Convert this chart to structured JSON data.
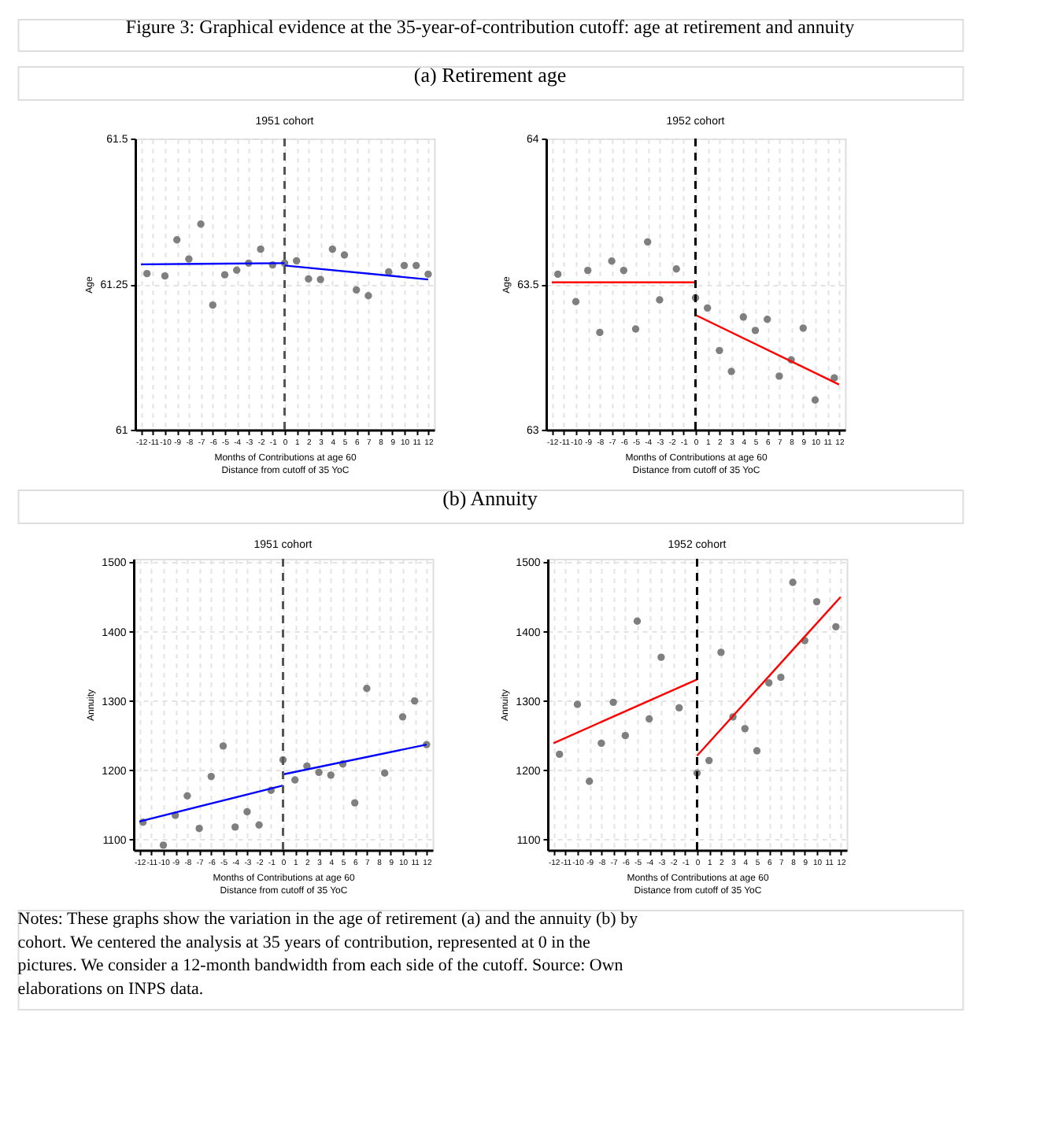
{
  "chart_data": [
    {
      "type": "scatter",
      "title": "1951 cohort",
      "xlabel": "Months of Contributions at age 60\nDistance from cutoff of 35 YoC",
      "ylabel": "Age",
      "annotations": [
        "Figure 3: Graphical evidence at the 35-year-of-contribution cutoff: age at retirement and annuity",
        "(a) Retirement age"
      ],
      "xlim": [
        -12.5,
        12.5
      ],
      "xticks": [
        -12,
        -11,
        -10,
        -9,
        -8,
        -7,
        -6,
        -5,
        -4,
        -3,
        -2,
        -1,
        0,
        1,
        2,
        3,
        4,
        5,
        6,
        7,
        8,
        9,
        10,
        11,
        12
      ],
      "ylim": [
        61,
        61.5
      ],
      "yticks": [
        61,
        61.25,
        61.5
      ],
      "grid": true,
      "ref_lines": [
        {
          "axis": "x",
          "value": 0,
          "color": "#555555",
          "line_style": "dashed"
        }
      ],
      "series": [
        {
          "color": "#7f7f7f",
          "marker": "circle",
          "x": [
            -11.5,
            -10,
            -9,
            -8,
            -7,
            -6,
            -5,
            -4,
            -3,
            -2,
            -1,
            0,
            1,
            2,
            3,
            4,
            5,
            6,
            7,
            8.7,
            10,
            11,
            12
          ],
          "values": [
            61.268,
            61.264,
            61.326,
            61.293,
            61.353,
            61.214,
            61.266,
            61.274,
            61.286,
            61.31,
            61.283,
            61.286,
            61.29,
            61.259,
            61.258,
            61.31,
            61.3,
            61.24,
            61.23,
            61.271,
            61.282,
            61.282,
            61.267
          ]
        },
        {
          "type": "line",
          "color": "#0000ff",
          "x": [
            -12,
            0
          ],
          "values": [
            61.284,
            61.286
          ]
        },
        {
          "type": "line",
          "color": "#0000ff",
          "x": [
            0,
            12
          ],
          "values": [
            61.282,
            61.258
          ]
        }
      ]
    },
    {
      "type": "scatter",
      "title": "1952 cohort",
      "xlabel": "Months of Contributions at age 60\nDistance from cutoff of 35 YoC",
      "ylabel": "Age",
      "xlim": [
        -12.5,
        12.5
      ],
      "xticks": [
        -12,
        -11,
        -10,
        -9,
        -8,
        -7,
        -6,
        -5,
        -4,
        -3,
        -2,
        -1,
        0,
        1,
        2,
        3,
        4,
        5,
        6,
        7,
        8,
        9,
        10,
        11,
        12
      ],
      "ylim": [
        63,
        64
      ],
      "yticks": [
        63,
        63.5,
        64
      ],
      "grid": true,
      "ref_lines": [
        {
          "axis": "x",
          "value": 0,
          "color": "#000000",
          "line_style": "dashed"
        }
      ],
      "series": [
        {
          "color": "#7f7f7f",
          "marker": "circle",
          "x": [
            -11.5,
            -10,
            -9,
            -8,
            -7,
            -6,
            -5,
            -4,
            -3,
            -1.6,
            0,
            1,
            2,
            3,
            4,
            5,
            6,
            7,
            8,
            9,
            10,
            11.6
          ],
          "values": [
            63.534,
            63.44,
            63.547,
            63.334,
            63.579,
            63.547,
            63.346,
            63.645,
            63.446,
            63.552,
            63.453,
            63.418,
            63.272,
            63.2,
            63.387,
            63.341,
            63.379,
            63.184,
            63.24,
            63.349,
            63.102,
            63.178
          ]
        },
        {
          "type": "line",
          "color": "#ff0000",
          "x": [
            -12,
            0
          ],
          "values": [
            63.506,
            63.506
          ]
        },
        {
          "type": "line",
          "color": "#ff0000",
          "x": [
            0,
            12
          ],
          "values": [
            63.394,
            63.155
          ]
        }
      ]
    },
    {
      "type": "scatter",
      "title": "1951 cohort",
      "xlabel": "Months of Contributions at age 60\nDistance from cutoff of 35 YoC",
      "ylabel": "Annuity",
      "annotations": [
        "(b) Annuity"
      ],
      "xlim": [
        -12.5,
        12.5
      ],
      "xticks": [
        -12,
        -11,
        -10,
        -9,
        -8,
        -7,
        -6,
        -5,
        -4,
        -3,
        -2,
        -1,
        0,
        1,
        2,
        3,
        4,
        5,
        6,
        7,
        8,
        9,
        10,
        11,
        12
      ],
      "ylim": [
        1085,
        1505
      ],
      "yticks": [
        1100,
        1200,
        1300,
        1400,
        1500
      ],
      "grid": true,
      "ref_lines": [
        {
          "axis": "x",
          "value": 0,
          "color": "#555555",
          "line_style": "dashed"
        }
      ],
      "series": [
        {
          "color": "#7f7f7f",
          "marker": "circle",
          "x": [
            -11.7,
            -10,
            -9,
            -8,
            -7,
            -6,
            -5,
            -4,
            -3,
            -2,
            -1,
            0,
            1,
            2,
            3,
            4,
            5,
            6,
            7,
            8.5,
            10,
            11,
            12
          ],
          "values": [
            1125,
            1092,
            1135,
            1163,
            1116,
            1191,
            1235,
            1118,
            1140,
            1121,
            1171,
            1215,
            1186,
            1206,
            1197,
            1193,
            1209,
            1153,
            1318,
            1196,
            1277,
            1300,
            1237
          ]
        },
        {
          "type": "line",
          "color": "#0000ff",
          "x": [
            -12,
            0
          ],
          "values": [
            1126,
            1178
          ]
        },
        {
          "type": "line",
          "color": "#0000ff",
          "x": [
            0,
            12
          ],
          "values": [
            1194,
            1237
          ]
        }
      ]
    },
    {
      "type": "scatter",
      "title": "1952 cohort",
      "xlabel": "Months of Contributions at age 60\nDistance from cutoff of 35 YoC",
      "ylabel": "Annuity",
      "annotations": [
        "Notes: These graphs show the variation in the age of retirement (a) and the annuity (b) by cohort. We centered the analysis at 35 years of contribution, represented at 0 in the pictures. We consider a 12-month bandwidth from each side of the cutoff. Source: Own elaborations on INPS data."
      ],
      "xlim": [
        -12.5,
        12.5
      ],
      "xticks": [
        -12,
        -11,
        -10,
        -9,
        -8,
        -7,
        -6,
        -5,
        -4,
        -3,
        -2,
        -1,
        0,
        1,
        2,
        3,
        4,
        5,
        6,
        7,
        8,
        9,
        10,
        11,
        12
      ],
      "ylim": [
        1085,
        1505
      ],
      "yticks": [
        1100,
        1200,
        1300,
        1400,
        1500
      ],
      "grid": true,
      "ref_lines": [
        {
          "axis": "x",
          "value": 0,
          "color": "#000000",
          "line_style": "dashed"
        }
      ],
      "series": [
        {
          "color": "#7f7f7f",
          "marker": "circle",
          "x": [
            -11.5,
            -10,
            -9,
            -8,
            -7,
            -6,
            -5,
            -4,
            -3,
            -1.5,
            0,
            1,
            2,
            3,
            4,
            5,
            6,
            7,
            8,
            9,
            10,
            11.6
          ],
          "values": [
            1223,
            1295,
            1184,
            1239,
            1298,
            1250,
            1415,
            1274,
            1363,
            1290,
            1196,
            1214,
            1370,
            1277,
            1260,
            1228,
            1326,
            1334,
            1471,
            1387,
            1443,
            1407
          ]
        },
        {
          "type": "line",
          "color": "#ff0000",
          "x": [
            -12,
            0
          ],
          "values": [
            1239,
            1331
          ]
        },
        {
          "type": "line",
          "color": "#ff0000",
          "x": [
            0,
            12
          ],
          "values": [
            1221,
            1450
          ]
        }
      ]
    }
  ]
}
